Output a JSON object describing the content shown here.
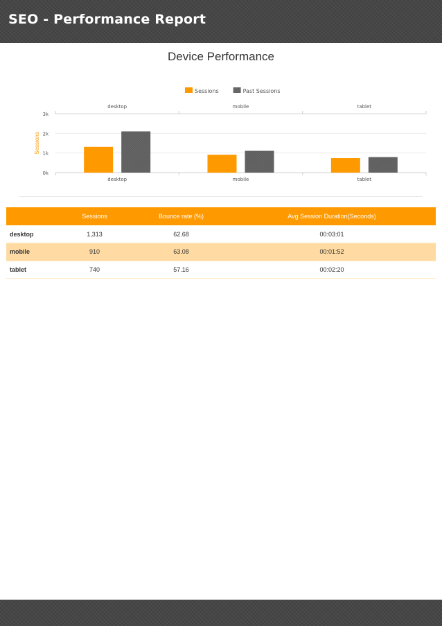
{
  "header": {
    "title": "SEO - Performance Report"
  },
  "section": {
    "title": "Device Performance"
  },
  "chart_data": {
    "type": "bar",
    "categories": [
      "desktop",
      "mobile",
      "tablet"
    ],
    "series": [
      {
        "name": "Sessions",
        "values": [
          1313,
          910,
          740
        ],
        "color": "#ff9900"
      },
      {
        "name": "Past Sessions",
        "values": [
          2100,
          1110,
          790
        ],
        "color": "#666666"
      }
    ],
    "ylabel": "Sessions",
    "ylim": [
      0,
      3000
    ],
    "yticks": [
      0,
      1000,
      2000,
      3000
    ],
    "ytick_labels": [
      "0k",
      "1k",
      "2k",
      "3k"
    ],
    "legend": "top-center",
    "grid": true,
    "colors": {
      "primary": "#ff9900",
      "secondary": "#666666"
    }
  },
  "table": {
    "columns": [
      "",
      "Sessions",
      "Bounce rate (%)",
      "Avg Session Duration(Seconds)"
    ],
    "rows": [
      {
        "device": "desktop",
        "sessions": "1,313",
        "bounce": "62.68",
        "duration": "00:03:01"
      },
      {
        "device": "mobile",
        "sessions": "910",
        "bounce": "63.08",
        "duration": "00:01:52"
      },
      {
        "device": "tablet",
        "sessions": "740",
        "bounce": "57.16",
        "duration": "00:02:20"
      }
    ]
  }
}
